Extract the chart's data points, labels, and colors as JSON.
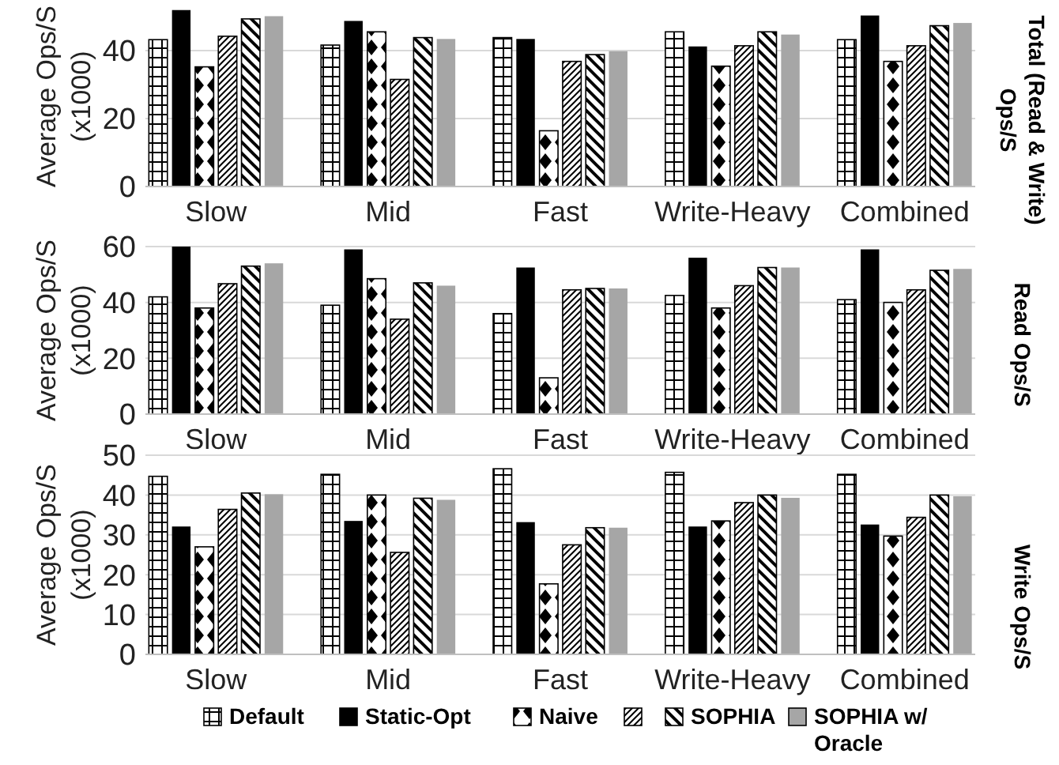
{
  "chart_data": [
    {
      "type": "bar",
      "y2label": "Total (Read & Write) Ops/S",
      "ylabel": "Average Ops/S (x1000)",
      "categories": [
        "Slow",
        "Mid",
        "Fast",
        "Write-Heavy",
        "Combined"
      ],
      "ylim": [
        0,
        53
      ],
      "yticks": [
        0,
        20,
        40
      ],
      "grid": "y",
      "legend": false,
      "series": [
        {
          "color": "#000000",
          "values": [
            43.2,
            41.6,
            43.8,
            45.5,
            43.2
          ]
        },
        {
          "color": "#000000",
          "values": [
            51.9,
            48.7,
            43.4,
            41.2,
            50.3
          ]
        },
        {
          "color": "#000000",
          "values": [
            35.2,
            45.5,
            16.4,
            35.4,
            36.8
          ]
        },
        {
          "color": "#000000",
          "values": [
            44.2,
            31.5,
            36.8,
            41.4,
            41.4
          ]
        },
        {
          "color": "#000000",
          "values": [
            49.3,
            43.8,
            38.8,
            45.5,
            47.3
          ]
        },
        {
          "color": "#a6a6a6",
          "values": [
            50.1,
            43.4,
            39.8,
            44.7,
            48.1
          ]
        }
      ]
    },
    {
      "type": "bar",
      "y2label": "Read Ops/S",
      "ylabel": "Average Ops/S (x1000)",
      "categories": [
        "Slow",
        "Mid",
        "Fast",
        "Write-Heavy",
        "Combined"
      ],
      "ylim": [
        0,
        60
      ],
      "yticks": [
        0,
        20,
        40,
        60
      ],
      "grid": "y",
      "legend": false,
      "series": [
        {
          "color": "#000000",
          "values": [
            42,
            39,
            36,
            42.5,
            41
          ]
        },
        {
          "color": "#000000",
          "values": [
            60,
            59,
            52.5,
            56,
            59
          ]
        },
        {
          "color": "#000000",
          "values": [
            38,
            48.5,
            13,
            38,
            40
          ]
        },
        {
          "color": "#000000",
          "values": [
            46.7,
            34,
            44.5,
            46,
            44.5
          ]
        },
        {
          "color": "#000000",
          "values": [
            53,
            47,
            45,
            52.5,
            51.5
          ]
        },
        {
          "color": "#a6a6a6",
          "values": [
            54,
            46,
            45,
            52.5,
            52
          ]
        }
      ]
    },
    {
      "type": "bar",
      "y2label": "Write Ops/S",
      "ylabel": "Average Ops/S (x1000)",
      "categories": [
        "Slow",
        "Mid",
        "Fast",
        "Write-Heavy",
        "Combined"
      ],
      "ylim": [
        0,
        50
      ],
      "yticks": [
        0,
        10,
        20,
        30,
        40,
        50
      ],
      "grid": "y",
      "legend": "bottom",
      "series": [
        {
          "name": "Default",
          "color": "#000000",
          "values": [
            44.7,
            45.2,
            46.6,
            45.7,
            45.2
          ]
        },
        {
          "name": "Static-Opt",
          "color": "#000000",
          "values": [
            32.1,
            33.5,
            33.2,
            32.1,
            32.6
          ]
        },
        {
          "name": "Naive",
          "color": "#000000",
          "values": [
            27,
            40,
            17.7,
            33.5,
            29.7
          ]
        },
        {
          "color": "#000000",
          "values": [
            36.4,
            25.6,
            27.5,
            38.1,
            34.4
          ]
        },
        {
          "name": "SOPHIA",
          "color": "#000000",
          "values": [
            40.5,
            39.2,
            31.8,
            40,
            40
          ]
        },
        {
          "name": "SOPHIA w/ Oracle",
          "color": "#a6a6a6",
          "values": [
            40.2,
            38.8,
            31.8,
            39.3,
            39.7
          ]
        }
      ]
    }
  ]
}
